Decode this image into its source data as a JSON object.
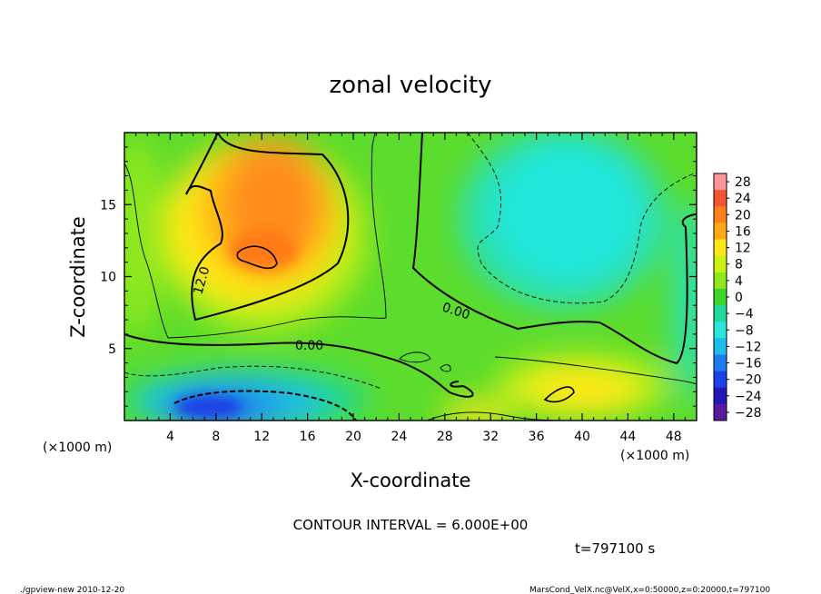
{
  "chart_data": {
    "type": "heatmap",
    "title": "zonal velocity",
    "xlabel": "X-coordinate",
    "ylabel": "Z-coordinate",
    "x_unit": "(×1000 m)",
    "y_unit": "(×1000 m)",
    "xlim": [
      0,
      50
    ],
    "ylim": [
      0,
      20
    ],
    "xticks": [
      4,
      8,
      12,
      16,
      20,
      24,
      28,
      32,
      36,
      40,
      44,
      48
    ],
    "yticks": [
      5,
      10,
      15
    ],
    "colorbar": {
      "levels": [
        28,
        24,
        20,
        16,
        12,
        8,
        4,
        0,
        -4,
        -8,
        -12,
        -16,
        -20,
        -24,
        -28
      ],
      "labels": [
        "28",
        "24",
        "20",
        "16",
        "12",
        "8",
        "4",
        "0",
        "−4",
        "−8",
        "−12",
        "−16",
        "−20",
        "−24",
        "−28"
      ],
      "colors": [
        "#ff9898",
        "#f5542f",
        "#ff7f18",
        "#ffaa14",
        "#ffe819",
        "#cdf212",
        "#8fe81a",
        "#3fd42a",
        "#1fd89a",
        "#2ae6dc",
        "#20bcef",
        "#1c7cf0",
        "#1a40e6",
        "#2218b8",
        "#5a1a9c"
      ]
    },
    "contour_labels": [
      "12.0",
      "0.00",
      "0.00"
    ],
    "contour_interval": "CONTOUR INTERVAL = 6.000E+00",
    "time": "t=797100 s"
  },
  "footer": {
    "left": "./gpview-new  2010-12-20",
    "right": "MarsCond_VelX.nc@VelX,x=0:50000,z=0:20000,t=797100"
  }
}
